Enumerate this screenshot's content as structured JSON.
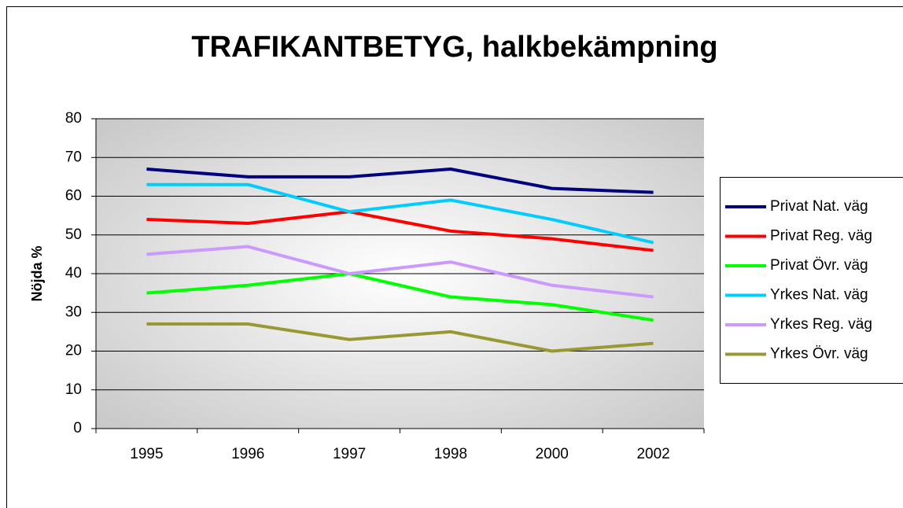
{
  "chart_data": {
    "type": "line",
    "title": "TRAFIKANTBETYG,  halkbekämpning",
    "y_label": "Nöjda %",
    "categories": [
      "1995",
      "1996",
      "1997",
      "1998",
      "2000",
      "2002"
    ],
    "series": [
      {
        "name": "Privat Nat. väg",
        "color": "#000080",
        "values": [
          67,
          65,
          65,
          67,
          62,
          61
        ]
      },
      {
        "name": "Privat Reg. väg",
        "color": "#ff0000",
        "values": [
          54,
          53,
          56,
          51,
          49,
          46
        ]
      },
      {
        "name": "Privat Övr. väg",
        "color": "#00ff00",
        "values": [
          35,
          37,
          40,
          34,
          32,
          28
        ]
      },
      {
        "name": "Yrkes Nat. väg",
        "color": "#00ccff",
        "values": [
          63,
          63,
          56,
          59,
          54,
          48
        ]
      },
      {
        "name": "Yrkes Reg. väg",
        "color": "#cc99ff",
        "values": [
          45,
          47,
          40,
          43,
          37,
          34
        ]
      },
      {
        "name": "Yrkes Övr. väg",
        "color": "#999933",
        "values": [
          27,
          27,
          23,
          25,
          20,
          22
        ]
      }
    ],
    "ylim": [
      0,
      80
    ],
    "yticks": [
      0,
      10,
      20,
      30,
      40,
      50,
      60,
      70,
      80
    ],
    "grid": true,
    "legend": "right"
  }
}
